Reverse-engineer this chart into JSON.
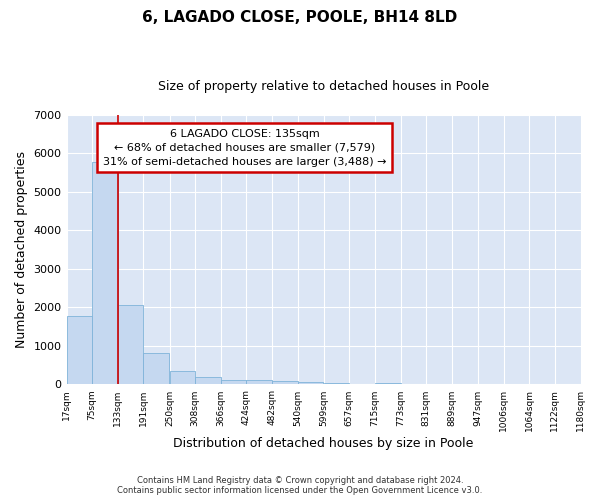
{
  "title_line1": "6, LAGADO CLOSE, POOLE, BH14 8LD",
  "title_line2": "Size of property relative to detached houses in Poole",
  "xlabel": "Distribution of detached houses by size in Poole",
  "ylabel": "Number of detached properties",
  "bar_color": "#c5d8f0",
  "bar_edge_color": "#7fb3d9",
  "annotation_line_color": "#cc0000",
  "annotation_box_color": "#cc0000",
  "annotation_text_line1": "6 LAGADO CLOSE: 135sqm",
  "annotation_text_line2": "← 68% of detached houses are smaller (7,579)",
  "annotation_text_line3": "31% of semi-detached houses are larger (3,488) →",
  "bins": [
    17,
    75,
    133,
    191,
    250,
    308,
    366,
    424,
    482,
    540,
    599,
    657,
    715,
    773,
    831,
    889,
    947,
    1006,
    1064,
    1122,
    1180
  ],
  "bin_labels": [
    "17sqm",
    "75sqm",
    "133sqm",
    "191sqm",
    "250sqm",
    "308sqm",
    "366sqm",
    "424sqm",
    "482sqm",
    "540sqm",
    "599sqm",
    "657sqm",
    "715sqm",
    "773sqm",
    "831sqm",
    "889sqm",
    "947sqm",
    "1006sqm",
    "1064sqm",
    "1122sqm",
    "1180sqm"
  ],
  "counts": [
    1780,
    5780,
    2060,
    830,
    360,
    200,
    120,
    110,
    100,
    70,
    50,
    0,
    50,
    0,
    0,
    0,
    0,
    0,
    0,
    0
  ],
  "ylim": [
    0,
    7000
  ],
  "yticks": [
    0,
    1000,
    2000,
    3000,
    4000,
    5000,
    6000,
    7000
  ],
  "plot_bg_color": "#dce6f5",
  "fig_bg_color": "#ffffff",
  "grid_color": "#ffffff",
  "footer_line1": "Contains HM Land Registry data © Crown copyright and database right 2024.",
  "footer_line2": "Contains public sector information licensed under the Open Government Licence v3.0.",
  "fig_width": 6.0,
  "fig_height": 5.0,
  "dpi": 100
}
